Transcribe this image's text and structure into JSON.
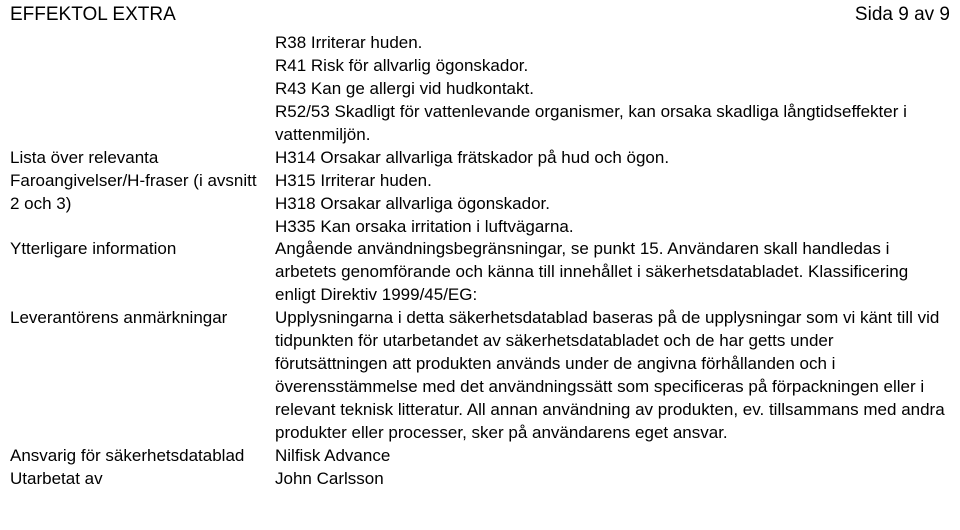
{
  "header": {
    "product": "EFFEKTOL EXTRA",
    "page": "Sida 9 av 9"
  },
  "rows": [
    {
      "label": "",
      "value": "R38 Irriterar huden.\nR41 Risk för allvarlig ögonskador.\nR43 Kan ge allergi vid hudkontakt.\nR52/53 Skadligt för vattenlevande organismer, kan orsaka skadliga långtidseffekter i vattenmiljön."
    },
    {
      "label": "Lista över relevanta Faroangivelser/H-fraser (i avsnitt 2 och 3)",
      "value": "H314 Orsakar allvarliga frätskador på hud och ögon.\nH315 Irriterar huden.\nH318 Orsakar allvarliga ögonskador.\nH335 Kan orsaka irritation i luftvägarna."
    },
    {
      "label": "Ytterligare information",
      "value": "Angående användningsbegränsningar, se punkt 15. Användaren skall handledas i arbetets genomförande och känna till innehållet i säkerhetsdatabladet. Klassificering enligt Direktiv 1999/45/EG:"
    },
    {
      "label": "Leverantörens anmärkningar",
      "value": "Upplysningarna i detta säkerhetsdatablad baseras på de upplysningar som vi känt till vid tidpunkten för utarbetandet av säkerhetsdatabladet och de har getts under förutsättningen att produkten används under de angivna förhållanden och i överensstämmelse med det användningssätt som specificeras på förpackningen eller i relevant teknisk litteratur. All annan användning av produkten, ev. tillsammans med andra produkter eller processer, sker på användarens eget ansvar."
    },
    {
      "label": "Ansvarig för säkerhetsdatablad",
      "value": "Nilfisk Advance"
    },
    {
      "label": "Utarbetat av",
      "value": "John Carlsson"
    }
  ]
}
